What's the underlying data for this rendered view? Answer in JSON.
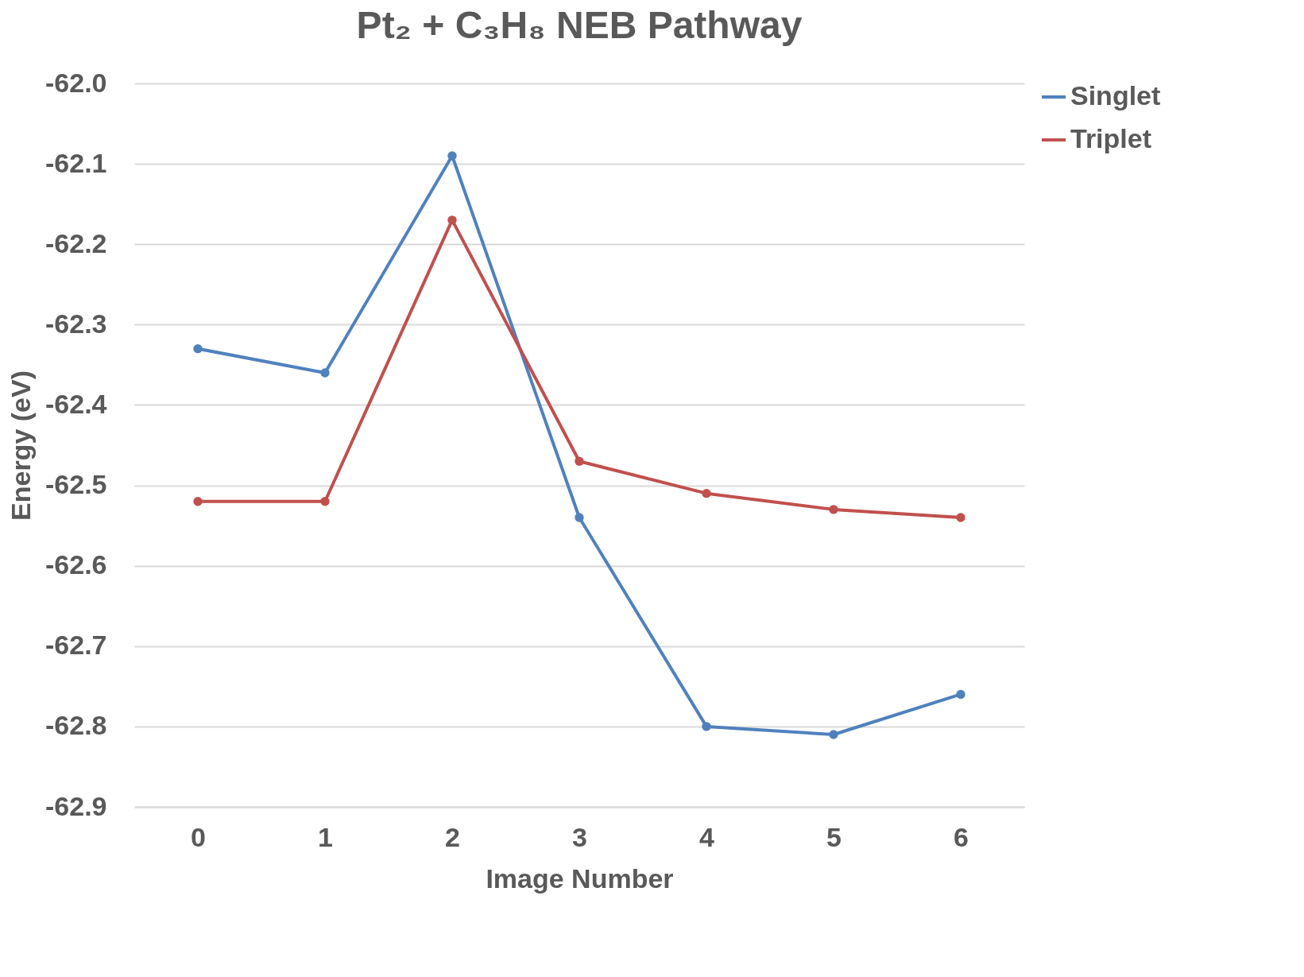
{
  "chart_data": {
    "type": "line",
    "title": "Pt₂ + C₃H₈ NEB Pathway",
    "xlabel": "Image Number",
    "ylabel": "Energy (eV)",
    "categories": [
      "0",
      "1",
      "2",
      "3",
      "4",
      "5",
      "6"
    ],
    "series": [
      {
        "name": "Singlet",
        "color": "#4f81bd",
        "values": [
          -62.33,
          -62.36,
          -62.09,
          -62.54,
          -62.8,
          -62.81,
          -62.76
        ]
      },
      {
        "name": "Triplet",
        "color": "#c0504d",
        "values": [
          -62.52,
          -62.52,
          -62.17,
          -62.47,
          -62.51,
          -62.53,
          -62.54
        ]
      }
    ],
    "ylim": [
      -62.9,
      -62.0
    ],
    "yticks": [
      {
        "value": -62.9,
        "label": "-62.9"
      },
      {
        "value": -62.8,
        "label": "-62.8"
      },
      {
        "value": -62.7,
        "label": "-62.7"
      },
      {
        "value": -62.6,
        "label": "-62.6"
      },
      {
        "value": -62.5,
        "label": "-62.5"
      },
      {
        "value": -62.4,
        "label": "-62.4"
      },
      {
        "value": -62.3,
        "label": "-62.3"
      },
      {
        "value": -62.2,
        "label": "-62.2"
      },
      {
        "value": -62.1,
        "label": "-62.1"
      },
      {
        "value": -62.0,
        "label": "-62.0"
      }
    ],
    "grid": "y",
    "legend": "right",
    "marker": "circle",
    "line_style": "solid"
  }
}
